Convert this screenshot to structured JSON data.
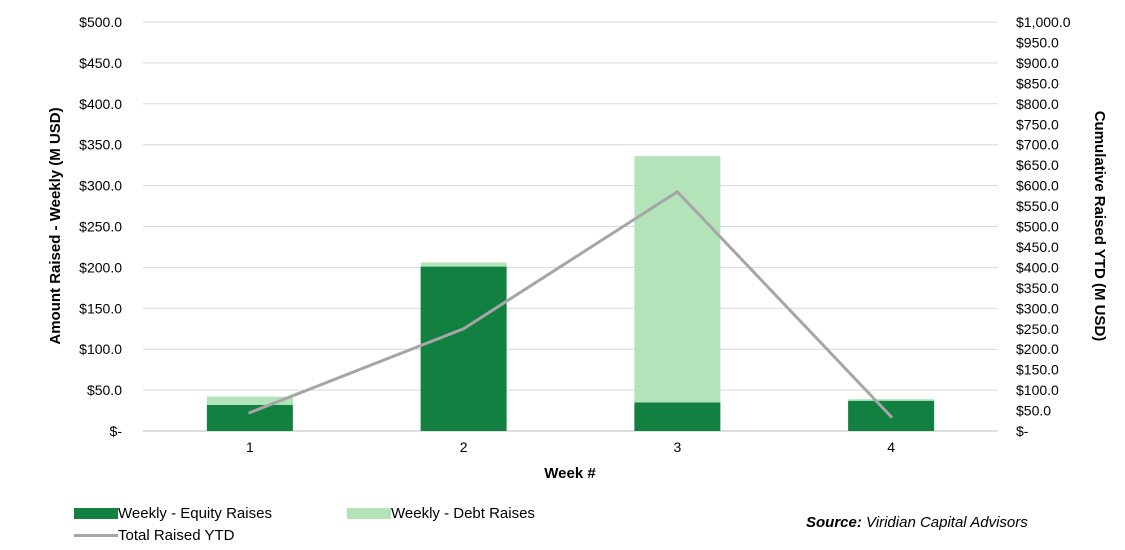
{
  "chart_data": {
    "type": "bar",
    "stacked": true,
    "categories": [
      "1",
      "2",
      "3",
      "4"
    ],
    "series": [
      {
        "name": "Weekly - Equity Raises",
        "type": "bar",
        "axis": "left",
        "color": "#128040",
        "values": [
          32,
          201,
          35,
          37
        ]
      },
      {
        "name": "Weekly - Debt Raises",
        "type": "bar",
        "axis": "left",
        "color": "#b3e3b9",
        "values": [
          10,
          5,
          301,
          2
        ]
      },
      {
        "name": "Total Raised YTD",
        "type": "line",
        "axis": "right",
        "color": "#a6a6a6",
        "values": [
          45,
          250,
          585,
          35
        ]
      }
    ],
    "xlabel": "Week #",
    "ylabel": "Amount Raised - Weekly (M USD)",
    "y2label": "Cumulative Raised YTD (M USD)",
    "ylim": [
      0,
      500
    ],
    "y2lim": [
      0,
      1000
    ],
    "yticks": [
      "$-",
      "$50.0",
      "$100.0",
      "$150.0",
      "$200.0",
      "$250.0",
      "$300.0",
      "$350.0",
      "$400.0",
      "$450.0",
      "$500.0"
    ],
    "y2ticks": [
      "$-",
      "$50.0",
      "$100.0",
      "$150.0",
      "$200.0",
      "$250.0",
      "$300.0",
      "$350.0",
      "$400.0",
      "$450.0",
      "$500.0",
      "$550.0",
      "$600.0",
      "$650.0",
      "$700.0",
      "$750.0",
      "$800.0",
      "$850.0",
      "$900.0",
      "$950.0",
      "$1,000.0"
    ],
    "grid": true,
    "legend_position": "bottom-left"
  },
  "source": {
    "label": "Source:",
    "text": "Viridian Capital Advisors"
  }
}
